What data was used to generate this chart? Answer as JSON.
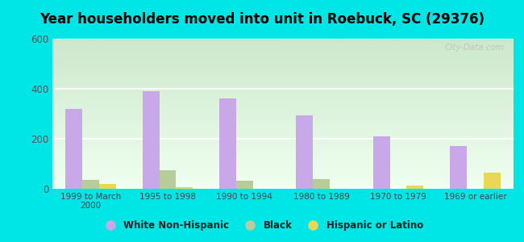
{
  "title": "Year householders moved into unit in Roebuck, SC (29376)",
  "categories": [
    "1999 to March\n2000",
    "1995 to 1998",
    "1990 to 1994",
    "1980 to 1989",
    "1970 to 1979",
    "1969 or earlier"
  ],
  "white_non_hispanic": [
    320,
    390,
    360,
    295,
    210,
    170
  ],
  "black": [
    35,
    75,
    33,
    38,
    0,
    0
  ],
  "hispanic_or_latino": [
    20,
    8,
    0,
    0,
    13,
    65
  ],
  "bar_colors": {
    "white": "#c8a8e8",
    "black": "#b8cc99",
    "hispanic": "#e8d855"
  },
  "legend_labels": [
    "White Non-Hispanic",
    "Black",
    "Hispanic or Latino"
  ],
  "ylim": [
    0,
    600
  ],
  "yticks": [
    0,
    200,
    400,
    600
  ],
  "bg_color": "#00e5e5",
  "grad_top": "#cce8cc",
  "grad_bottom": "#f0fff0",
  "watermark": "City-Data.com",
  "bar_width": 0.22
}
